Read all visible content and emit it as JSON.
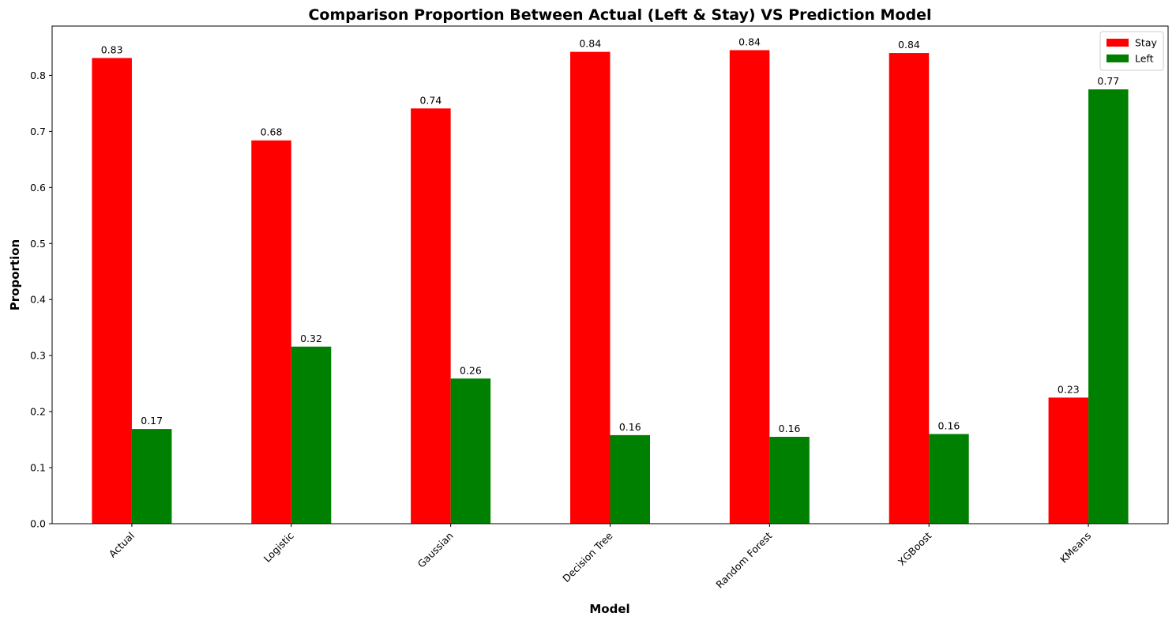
{
  "chart_data": {
    "type": "bar",
    "title": "Comparison Proportion Between Actual (Left & Stay) VS Prediction Model",
    "xlabel": "Model",
    "ylabel": "Proportion",
    "categories": [
      "Actual",
      "Logistic",
      "Gaussian",
      "Decision Tree",
      "Random Forest",
      "XGBoost",
      "KMeans"
    ],
    "series": [
      {
        "name": "Stay",
        "color": "#ff0000",
        "values": [
          0.831,
          0.684,
          0.741,
          0.842,
          0.845,
          0.84,
          0.225
        ],
        "labels": [
          "0.83",
          "0.68",
          "0.74",
          "0.84",
          "0.84",
          "0.84",
          "0.23"
        ]
      },
      {
        "name": "Left",
        "color": "#008000",
        "values": [
          0.169,
          0.316,
          0.259,
          0.158,
          0.155,
          0.16,
          0.775
        ],
        "labels": [
          "0.17",
          "0.32",
          "0.26",
          "0.16",
          "0.16",
          "0.16",
          "0.77"
        ]
      }
    ],
    "yticks": [
      "0.0",
      "0.1",
      "0.2",
      "0.3",
      "0.4",
      "0.5",
      "0.6",
      "0.7",
      "0.8"
    ],
    "ylim": [
      0,
      0.888
    ],
    "grid": false,
    "legend": "top-right"
  }
}
